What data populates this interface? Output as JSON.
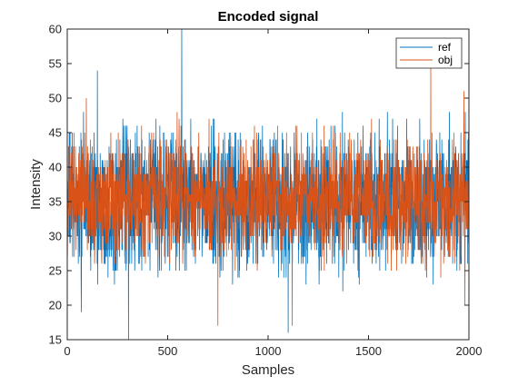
{
  "chart_data": {
    "type": "line",
    "title": "Encoded signal",
    "xlabel": "Samples",
    "ylabel": "Intensity",
    "xlim": [
      0,
      2000
    ],
    "ylim": [
      15,
      60
    ],
    "xticks": [
      0,
      500,
      1000,
      1500,
      2000
    ],
    "yticks": [
      15,
      20,
      25,
      30,
      35,
      40,
      45,
      50,
      55,
      60
    ],
    "xtick_labels": [
      "0",
      "500",
      "1000",
      "1500",
      "2000"
    ],
    "ytick_labels": [
      "15",
      "20",
      "25",
      "30",
      "35",
      "40",
      "45",
      "50",
      "55",
      "60"
    ],
    "grid": false,
    "legend_position": "top-right",
    "series": [
      {
        "name": "ref",
        "color": "#0072BD",
        "n_samples": 2000,
        "mean": 35,
        "typical_range": [
          24,
          47
        ],
        "extremes": [
          {
            "x": 570,
            "y": 60
          },
          {
            "x": 305,
            "y": 15
          },
          {
            "x": 150,
            "y": 54
          },
          {
            "x": 1100,
            "y": 16
          },
          {
            "x": 2000,
            "y": 53
          },
          {
            "x": 70,
            "y": 19
          }
        ]
      },
      {
        "name": "obj",
        "color": "#D95319",
        "n_samples": 2000,
        "mean": 35.5,
        "typical_range": [
          26,
          46
        ],
        "extremes": [
          {
            "x": 1810,
            "y": 55
          },
          {
            "x": 95,
            "y": 50
          },
          {
            "x": 750,
            "y": 17
          },
          {
            "x": 1975,
            "y": 51
          },
          {
            "x": 1120,
            "y": 17
          },
          {
            "x": 1980,
            "y": 20
          }
        ]
      }
    ]
  }
}
